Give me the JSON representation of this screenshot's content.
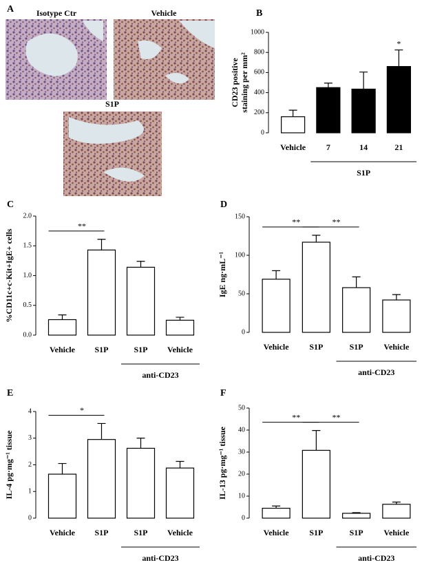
{
  "panel_a": {
    "panel": "A",
    "images": [
      {
        "label": "Isotype Ctr"
      },
      {
        "label": "Vehicle"
      },
      {
        "label": "S1P"
      }
    ]
  },
  "chart_data": [
    {
      "type": "bar",
      "panel": "B",
      "y_label": [
        "CD23 positive",
        "staining per mm²"
      ],
      "categories": [
        "Vehicle",
        "7",
        "14",
        "21"
      ],
      "values": [
        160,
        450,
        435,
        660
      ],
      "errors": [
        65,
        45,
        170,
        165
      ],
      "colors": [
        "#ffffff",
        "#000000",
        "#000000",
        "#000000"
      ],
      "ylim": [
        0,
        1000
      ],
      "yticks": [
        0,
        200,
        400,
        600,
        800,
        1000
      ],
      "annotations": [
        {
          "text": "*",
          "span": [
            3,
            3
          ]
        }
      ],
      "groups": [
        {
          "label": "S1P",
          "span": [
            1,
            3
          ]
        }
      ]
    },
    {
      "type": "bar",
      "panel": "C",
      "y_label": [
        "%CD11c+c-Kit+IgE+ cells"
      ],
      "categories": [
        "Vehicle",
        "S1P",
        "S1P",
        "Vehicle"
      ],
      "values": [
        0.26,
        1.43,
        1.14,
        0.25
      ],
      "errors": [
        0.08,
        0.18,
        0.1,
        0.05
      ],
      "colors": [
        "#ffffff",
        "#ffffff",
        "#ffffff",
        "#ffffff"
      ],
      "ylim": [
        0,
        2
      ],
      "yticks": [
        {
          "value": 0,
          "label": "0.0"
        },
        {
          "value": 0.5,
          "label": "0.5"
        },
        {
          "value": 1,
          "label": "1.0"
        },
        {
          "value": 1.5,
          "label": "1.5"
        },
        {
          "value": 2,
          "label": "2.0"
        }
      ],
      "annotations": [
        {
          "text": "**",
          "span": [
            0,
            1
          ]
        }
      ],
      "groups": [
        {
          "label": "anti-CD23",
          "span": [
            2,
            3
          ]
        }
      ]
    },
    {
      "type": "bar",
      "panel": "D",
      "y_label": [
        "IgE ng·mL⁻¹"
      ],
      "categories": [
        "Vehicle",
        "S1P",
        "S1P",
        "Vehicle"
      ],
      "values": [
        69,
        117,
        58,
        42
      ],
      "errors": [
        11,
        9,
        14,
        7
      ],
      "colors": [
        "#ffffff",
        "#ffffff",
        "#ffffff",
        "#ffffff"
      ],
      "ylim": [
        0,
        150
      ],
      "yticks": [
        0,
        50,
        100,
        150
      ],
      "annotations": [
        {
          "text": "**",
          "span": [
            0,
            1
          ]
        },
        {
          "text": "**",
          "span": [
            1,
            2
          ]
        }
      ],
      "groups": [
        {
          "label": "anti-CD23",
          "span": [
            2,
            3
          ]
        }
      ]
    },
    {
      "type": "bar",
      "panel": "E",
      "y_label": [
        "IL-4 pg·mg⁻¹ tissue"
      ],
      "categories": [
        "Vehicle",
        "S1P",
        "S1P",
        "Vehicle"
      ],
      "values": [
        1.65,
        2.95,
        2.62,
        1.88
      ],
      "errors": [
        0.4,
        0.6,
        0.38,
        0.25
      ],
      "colors": [
        "#ffffff",
        "#ffffff",
        "#ffffff",
        "#ffffff"
      ],
      "ylim": [
        0,
        4
      ],
      "yticks": [
        0,
        1,
        2,
        3,
        4
      ],
      "annotations": [
        {
          "text": "*",
          "span": [
            0,
            1
          ]
        }
      ],
      "groups": [
        {
          "label": "anti-CD23",
          "span": [
            2,
            3
          ]
        }
      ]
    },
    {
      "type": "bar",
      "panel": "F",
      "y_label": [
        "IL-13 pg·mg⁻¹ tissue"
      ],
      "categories": [
        "Vehicle",
        "S1P",
        "S1P",
        "Vehicle"
      ],
      "values": [
        4.5,
        30.8,
        2.2,
        6.3
      ],
      "errors": [
        1,
        9,
        0.3,
        1
      ],
      "colors": [
        "#ffffff",
        "#ffffff",
        "#ffffff",
        "#ffffff"
      ],
      "ylim": [
        0,
        50
      ],
      "yticks": [
        0,
        10,
        20,
        30,
        40,
        50
      ],
      "annotations": [
        {
          "text": "**",
          "span": [
            0,
            1
          ]
        },
        {
          "text": "**",
          "span": [
            1,
            2
          ]
        }
      ],
      "groups": [
        {
          "label": "anti-CD23",
          "span": [
            2,
            3
          ]
        }
      ]
    }
  ]
}
